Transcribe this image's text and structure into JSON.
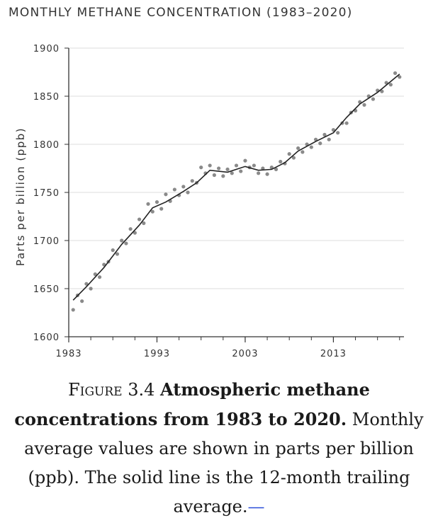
{
  "chart_data": {
    "type": "line",
    "title": "MONTHLY METHANE CONCENTRATION (1983–2020)",
    "xlabel": "",
    "ylabel": "Parts per billion (ppb)",
    "xlim": [
      1983,
      2021
    ],
    "ylim": [
      1600,
      1900
    ],
    "xticks": [
      1983,
      1993,
      2003,
      2013
    ],
    "yticks": [
      1600,
      1650,
      1700,
      1750,
      1800,
      1850,
      1900
    ],
    "grid": true,
    "series": [
      {
        "name": "",
        "style": "dots",
        "x": [
          1983.5,
          1984.0,
          1984.5,
          1985.0,
          1985.5,
          1986.0,
          1986.5,
          1987.0,
          1987.5,
          1988.0,
          1988.5,
          1989.0,
          1989.5,
          1990.0,
          1990.5,
          1991.0,
          1991.5,
          1992.0,
          1992.5,
          1993.0,
          1993.5,
          1994.0,
          1994.5,
          1995.0,
          1995.5,
          1996.0,
          1996.5,
          1997.0,
          1997.5,
          1998.0,
          1998.5,
          1999.0,
          1999.5,
          2000.0,
          2000.5,
          2001.0,
          2001.5,
          2002.0,
          2002.5,
          2003.0,
          2003.5,
          2004.0,
          2004.5,
          2005.0,
          2005.5,
          2006.0,
          2006.5,
          2007.0,
          2007.5,
          2008.0,
          2008.5,
          2009.0,
          2009.5,
          2010.0,
          2010.5,
          2011.0,
          2011.5,
          2012.0,
          2012.5,
          2013.0,
          2013.5,
          2014.0,
          2014.5,
          2015.0,
          2015.5,
          2016.0,
          2016.5,
          2017.0,
          2017.5,
          2018.0,
          2018.5,
          2019.0,
          2019.5,
          2020.0,
          2020.5
        ],
        "y": [
          1628,
          1643,
          1637,
          1655,
          1650,
          1665,
          1662,
          1675,
          1678,
          1690,
          1686,
          1700,
          1697,
          1712,
          1708,
          1722,
          1718,
          1738,
          1730,
          1740,
          1733,
          1748,
          1741,
          1753,
          1747,
          1756,
          1750,
          1762,
          1760,
          1776,
          1770,
          1778,
          1768,
          1775,
          1767,
          1774,
          1770,
          1778,
          1772,
          1783,
          1776,
          1778,
          1770,
          1775,
          1769,
          1776,
          1774,
          1782,
          1780,
          1790,
          1786,
          1796,
          1792,
          1800,
          1797,
          1805,
          1801,
          1810,
          1805,
          1815,
          1812,
          1822,
          1822,
          1833,
          1835,
          1844,
          1841,
          1850,
          1847,
          1856,
          1855,
          1864,
          1862,
          1874,
          1870
        ]
      },
      {
        "name": "",
        "style": "line",
        "x": [
          1983.5,
          1985,
          1987,
          1989,
          1991,
          1992.5,
          1994,
          1996,
          1997.5,
          1999,
          2001,
          2003,
          2004.5,
          2006,
          2007.5,
          2009,
          2011,
          2013,
          2014.5,
          2016,
          2018,
          2020.5
        ],
        "y": [
          1638,
          1652,
          1672,
          1696,
          1716,
          1734,
          1740,
          1751,
          1760,
          1773,
          1771,
          1777,
          1773,
          1774,
          1781,
          1793,
          1803,
          1812,
          1828,
          1842,
          1854,
          1873
        ]
      }
    ]
  },
  "caption": {
    "label": "Figure 3.4",
    "title": "Atmospheric methane concentrations from 1983 to 2020.",
    "text": "Monthly average values are shown in parts per billion (ppb). The solid line is the 12-month trailing average.",
    "link": "—"
  }
}
